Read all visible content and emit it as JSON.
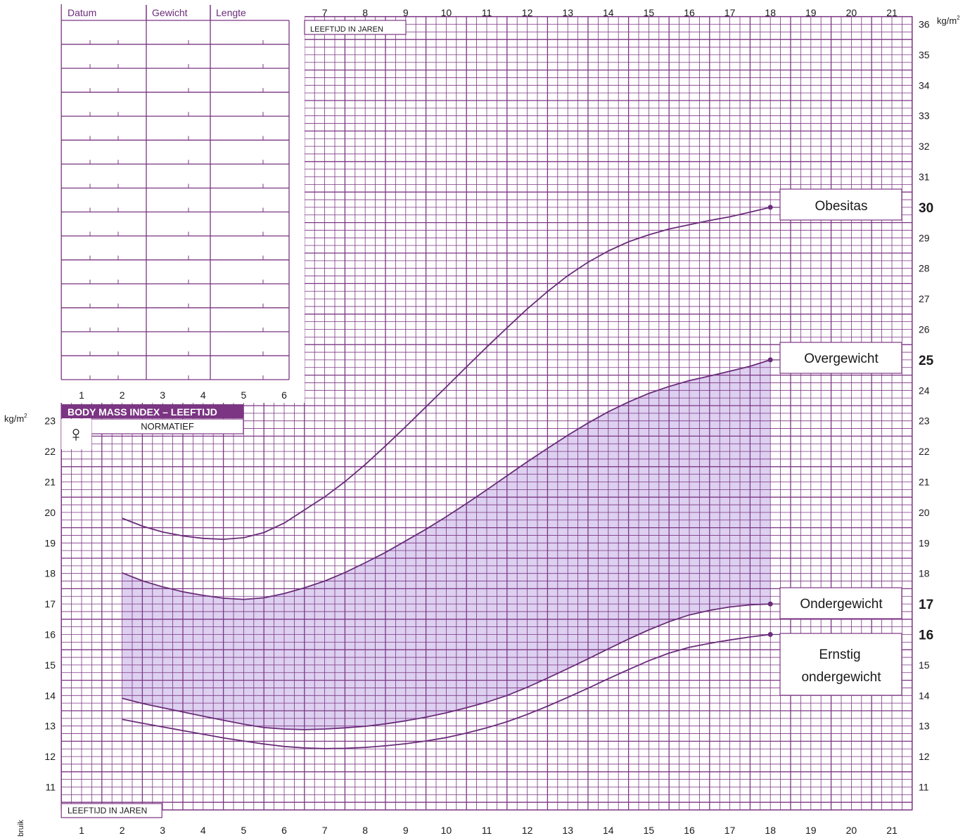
{
  "chart_data": {
    "type": "line",
    "title": "BODY MASS INDEX – LEEFTIJD",
    "subtitle": "NORMATIEF",
    "sex_symbol": "♀",
    "xlabel": "LEEFTIJD IN JAREN",
    "ylabel_unit": "kg/m",
    "ylabel_sup": "2",
    "xlim": [
      0.5,
      21.5
    ],
    "ylim": [
      10.25,
      36.25
    ],
    "x_ticks_bottom": [
      "1",
      "2",
      "3",
      "4",
      "5",
      "6",
      "7",
      "8",
      "9",
      "10",
      "11",
      "12",
      "13",
      "14",
      "15",
      "16",
      "17",
      "18",
      "19",
      "20",
      "21"
    ],
    "x_ticks_top": [
      "7",
      "8",
      "9",
      "10",
      "11",
      "12",
      "13",
      "14",
      "15",
      "16",
      "17",
      "18",
      "19",
      "20",
      "21"
    ],
    "x_ticks_table": [
      "1",
      "2",
      "3",
      "4",
      "5",
      "6"
    ],
    "y_ticks_left": [
      "11",
      "12",
      "13",
      "14",
      "15",
      "16",
      "17",
      "18",
      "19",
      "20",
      "21",
      "22",
      "23"
    ],
    "y_ticks_right": [
      "11",
      "12",
      "13",
      "14",
      "15",
      "18",
      "19",
      "20",
      "21",
      "22",
      "23",
      "24",
      "26",
      "27",
      "28",
      "29",
      "31",
      "32",
      "33",
      "34",
      "35",
      "36"
    ],
    "y_ticks_right_bold": [
      "16",
      "17",
      "25",
      "30"
    ],
    "grid": true,
    "shaded_band": "between Ondergewicht and Overgewicht, x 2–18",
    "series": [
      {
        "name": "Obesitas",
        "label_value": "30",
        "x": [
          2,
          2.5,
          3,
          3.5,
          4,
          4.5,
          5,
          5.5,
          6,
          6.5,
          7,
          7.5,
          8,
          8.5,
          9,
          9.5,
          10,
          10.5,
          11,
          11.5,
          12,
          12.5,
          13,
          13.5,
          14,
          14.5,
          15,
          15.5,
          16,
          16.5,
          17,
          17.5,
          18
        ],
        "values": [
          19.81,
          19.55,
          19.36,
          19.23,
          19.15,
          19.12,
          19.17,
          19.34,
          19.65,
          20.08,
          20.51,
          21.01,
          21.57,
          22.18,
          22.81,
          23.46,
          24.11,
          24.77,
          25.42,
          26.05,
          26.67,
          27.24,
          27.76,
          28.2,
          28.57,
          28.87,
          29.1,
          29.29,
          29.43,
          29.57,
          29.69,
          29.84,
          30.0
        ]
      },
      {
        "name": "Overgewicht",
        "label_value": "25",
        "x": [
          2,
          2.5,
          3,
          3.5,
          4,
          4.5,
          5,
          5.5,
          6,
          6.5,
          7,
          7.5,
          8,
          8.5,
          9,
          9.5,
          10,
          10.5,
          11,
          11.5,
          12,
          12.5,
          13,
          13.5,
          14,
          14.5,
          15,
          15.5,
          16,
          16.5,
          17,
          17.5,
          18
        ],
        "values": [
          18.02,
          17.76,
          17.56,
          17.4,
          17.28,
          17.19,
          17.15,
          17.2,
          17.34,
          17.53,
          17.75,
          18.03,
          18.35,
          18.69,
          19.07,
          19.45,
          19.86,
          20.29,
          20.74,
          21.2,
          21.66,
          22.1,
          22.53,
          22.93,
          23.3,
          23.62,
          23.9,
          24.13,
          24.32,
          24.47,
          24.63,
          24.79,
          25.0
        ]
      },
      {
        "name": "Ondergewicht",
        "label_value": "17",
        "x": [
          2,
          2.5,
          3,
          3.5,
          4,
          4.5,
          5,
          5.5,
          6,
          6.5,
          7,
          7.5,
          8,
          8.5,
          9,
          9.5,
          10,
          10.5,
          11,
          11.5,
          12,
          12.5,
          13,
          13.5,
          14,
          14.5,
          15,
          15.5,
          16,
          16.5,
          17,
          17.5,
          18
        ],
        "values": [
          13.91,
          13.74,
          13.6,
          13.46,
          13.32,
          13.19,
          13.06,
          12.95,
          12.9,
          12.88,
          12.9,
          12.94,
          12.99,
          13.07,
          13.17,
          13.29,
          13.43,
          13.6,
          13.78,
          14.0,
          14.27,
          14.57,
          14.88,
          15.2,
          15.53,
          15.85,
          16.15,
          16.42,
          16.64,
          16.79,
          16.9,
          16.97,
          17.0
        ]
      },
      {
        "name": "Ernstig ondergewicht",
        "label_value": "16",
        "x": [
          2,
          2.5,
          3,
          3.5,
          4,
          4.5,
          5,
          5.5,
          6,
          6.5,
          7,
          7.5,
          8,
          8.5,
          9,
          9.5,
          10,
          10.5,
          11,
          11.5,
          12,
          12.5,
          13,
          13.5,
          14,
          14.5,
          15,
          15.5,
          16,
          16.5,
          17,
          17.5,
          18
        ],
        "values": [
          13.22,
          13.09,
          12.97,
          12.85,
          12.73,
          12.61,
          12.51,
          12.41,
          12.33,
          12.28,
          12.26,
          12.27,
          12.3,
          12.35,
          12.42,
          12.51,
          12.62,
          12.77,
          12.94,
          13.14,
          13.38,
          13.65,
          13.94,
          14.24,
          14.55,
          14.85,
          15.14,
          15.39,
          15.58,
          15.71,
          15.82,
          15.92,
          16.0
        ]
      }
    ],
    "labels": {
      "obesitas": "Obesitas",
      "overgewicht": "Overgewicht",
      "ondergewicht": "Ondergewicht",
      "ernstig_line1": "Ernstig",
      "ernstig_line2": "ondergewicht"
    }
  },
  "record_table": {
    "columns": [
      "Datum",
      "Gewicht",
      "Lengte"
    ],
    "rows": 15
  },
  "margin_text": "bruik",
  "colors": {
    "grid": "#7b3583",
    "curve": "#6a2c7a",
    "band": "#ddd0f0",
    "title_bg": "#7b3583",
    "title_fg": "#ffffff",
    "text_purple": "#6a2c7a",
    "text_dark": "#1a1a1a"
  }
}
